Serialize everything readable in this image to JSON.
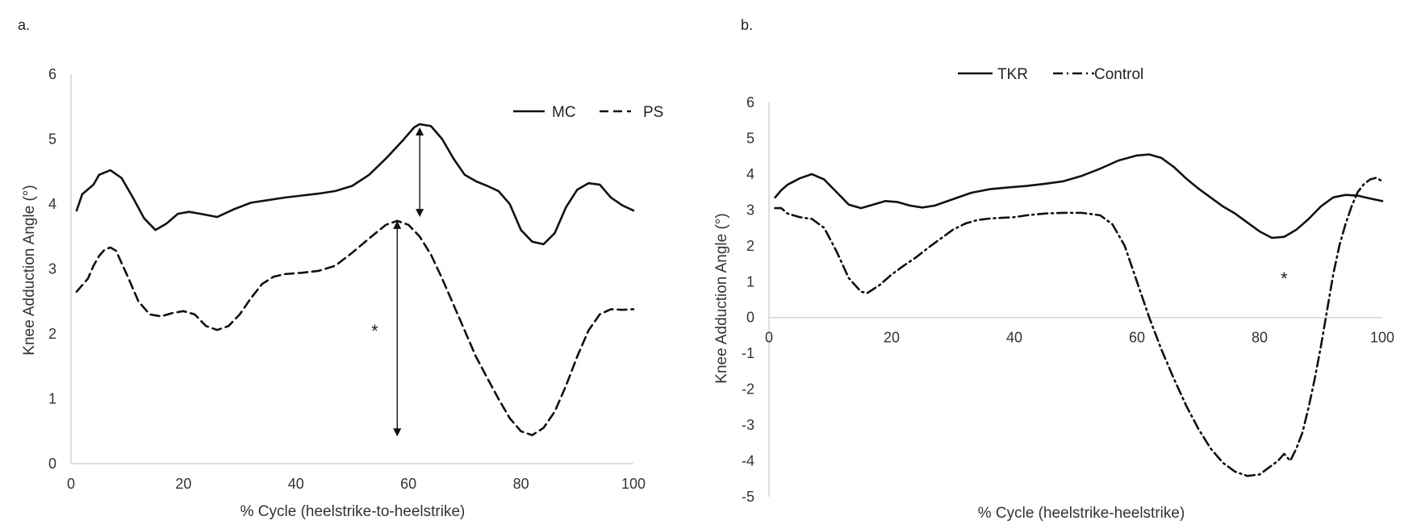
{
  "figure": {
    "panels": [
      {
        "panel_label": "a.",
        "chart_data": {
          "type": "line",
          "title": "",
          "xlabel": "% Cycle (heelstrike-to-heelstrike)",
          "ylabel": "Knee Adduction Angle (°)",
          "xlim": [
            0,
            100
          ],
          "ylim": [
            0,
            6
          ],
          "xticks": [
            0,
            20,
            40,
            60,
            80,
            100
          ],
          "yticks": [
            0,
            1,
            2,
            3,
            4,
            5,
            6
          ],
          "grid": false,
          "legend_position": "top-right",
          "series": [
            {
              "name": "MC",
              "style": "solid",
              "x": [
                1,
                2,
                4,
                5,
                7,
                9,
                11,
                13,
                15,
                17,
                19,
                21,
                23,
                26,
                29,
                32,
                35,
                38,
                41,
                44,
                47,
                50,
                53,
                56,
                59,
                61,
                62,
                64,
                66,
                68,
                70,
                72,
                74,
                76,
                78,
                80,
                82,
                84,
                86,
                88,
                90,
                92,
                94,
                96,
                98,
                100
              ],
              "y": [
                3.9,
                4.15,
                4.3,
                4.45,
                4.52,
                4.4,
                4.1,
                3.78,
                3.6,
                3.7,
                3.85,
                3.88,
                3.85,
                3.8,
                3.92,
                4.02,
                4.06,
                4.1,
                4.13,
                4.16,
                4.2,
                4.28,
                4.45,
                4.7,
                4.98,
                5.18,
                5.23,
                5.2,
                5.0,
                4.7,
                4.45,
                4.35,
                4.28,
                4.2,
                4.0,
                3.6,
                3.42,
                3.38,
                3.55,
                3.95,
                4.22,
                4.32,
                4.3,
                4.1,
                3.98,
                3.9
              ]
            },
            {
              "name": "PS",
              "style": "dashed",
              "x": [
                1,
                2,
                3,
                4,
                5,
                6,
                7,
                8,
                10,
                12,
                14,
                16,
                18,
                20,
                22,
                24,
                26,
                28,
                30,
                32,
                34,
                36,
                38,
                41,
                44,
                47,
                50,
                53,
                56,
                58,
                60,
                62,
                64,
                66,
                68,
                70,
                72,
                74,
                76,
                78,
                80,
                82,
                84,
                86,
                88,
                90,
                92,
                94,
                96,
                98,
                100
              ],
              "y": [
                2.65,
                2.75,
                2.85,
                3.05,
                3.2,
                3.3,
                3.33,
                3.28,
                2.9,
                2.5,
                2.3,
                2.27,
                2.32,
                2.35,
                2.3,
                2.12,
                2.06,
                2.12,
                2.3,
                2.55,
                2.77,
                2.88,
                2.92,
                2.94,
                2.97,
                3.05,
                3.25,
                3.47,
                3.68,
                3.74,
                3.68,
                3.5,
                3.22,
                2.85,
                2.45,
                2.05,
                1.65,
                1.32,
                1.0,
                0.7,
                0.5,
                0.44,
                0.55,
                0.8,
                1.2,
                1.65,
                2.05,
                2.3,
                2.38,
                2.37,
                2.38
              ]
            }
          ],
          "annotations": [
            {
              "type": "double-arrow",
              "x": 62,
              "y_from": 5.18,
              "y_to": 3.8
            },
            {
              "type": "double-arrow",
              "x": 58,
              "y_from": 3.74,
              "y_to": 0.42
            },
            {
              "type": "text",
              "text": "*",
              "x": 54,
              "y": 2.05
            }
          ]
        }
      },
      {
        "panel_label": "b.",
        "chart_data": {
          "type": "line",
          "title": "",
          "xlabel": "% Cycle (heelstrike-heelstrike)",
          "ylabel": "Knee Adduction Angle (°)",
          "xlim": [
            0,
            100
          ],
          "ylim": [
            -5,
            6
          ],
          "xticks": [
            0,
            20,
            40,
            60,
            80,
            100
          ],
          "yticks": [
            -5,
            -4,
            -3,
            -2,
            -1,
            0,
            1,
            2,
            3,
            4,
            5,
            6
          ],
          "grid": false,
          "legend_position": "top",
          "series": [
            {
              "name": "TKR",
              "style": "solid",
              "x": [
                1,
                2,
                3,
                5,
                7,
                9,
                11,
                13,
                15,
                17,
                19,
                21,
                23,
                25,
                27,
                30,
                33,
                36,
                39,
                42,
                45,
                48,
                51,
                54,
                57,
                60,
                62,
                64,
                66,
                68,
                70,
                72,
                74,
                76,
                78,
                80,
                82,
                84,
                86,
                88,
                90,
                92,
                94,
                96,
                98,
                100
              ],
              "y": [
                3.35,
                3.55,
                3.7,
                3.88,
                4.0,
                3.85,
                3.5,
                3.15,
                3.05,
                3.15,
                3.25,
                3.22,
                3.12,
                3.07,
                3.12,
                3.3,
                3.48,
                3.58,
                3.63,
                3.67,
                3.73,
                3.8,
                3.95,
                4.15,
                4.38,
                4.52,
                4.55,
                4.45,
                4.2,
                3.88,
                3.6,
                3.35,
                3.1,
                2.9,
                2.65,
                2.4,
                2.22,
                2.25,
                2.45,
                2.75,
                3.1,
                3.35,
                3.42,
                3.4,
                3.32,
                3.25
              ]
            },
            {
              "name": "Control",
              "style": "dash-dot",
              "x": [
                1,
                2,
                3,
                5,
                7,
                9,
                11,
                13,
                15,
                16,
                18,
                20,
                22,
                24,
                26,
                28,
                30,
                32,
                34,
                36,
                38,
                40,
                42,
                45,
                48,
                51,
                54,
                56,
                58,
                60,
                62,
                64,
                66,
                68,
                70,
                72,
                74,
                76,
                78,
                80,
                81,
                83,
                84,
                85,
                86,
                87,
                88,
                89,
                90,
                91,
                92,
                93,
                94,
                95,
                96,
                97,
                98,
                99,
                100
              ],
              "y": [
                3.05,
                3.05,
                2.9,
                2.8,
                2.75,
                2.5,
                1.85,
                1.1,
                0.72,
                0.68,
                0.9,
                1.2,
                1.45,
                1.68,
                1.95,
                2.2,
                2.45,
                2.62,
                2.72,
                2.76,
                2.78,
                2.8,
                2.85,
                2.9,
                2.92,
                2.92,
                2.85,
                2.6,
                2.0,
                1.0,
                0.0,
                -0.9,
                -1.7,
                -2.45,
                -3.1,
                -3.65,
                -4.05,
                -4.3,
                -4.42,
                -4.38,
                -4.25,
                -4.0,
                -3.8,
                -4.0,
                -3.65,
                -3.2,
                -2.5,
                -1.7,
                -0.8,
                0.2,
                1.2,
                2.0,
                2.6,
                3.1,
                3.5,
                3.72,
                3.85,
                3.9,
                3.8
              ]
            }
          ],
          "annotations": [
            {
              "type": "text",
              "text": "*",
              "x": 84,
              "y": 1.1
            }
          ]
        }
      }
    ]
  }
}
